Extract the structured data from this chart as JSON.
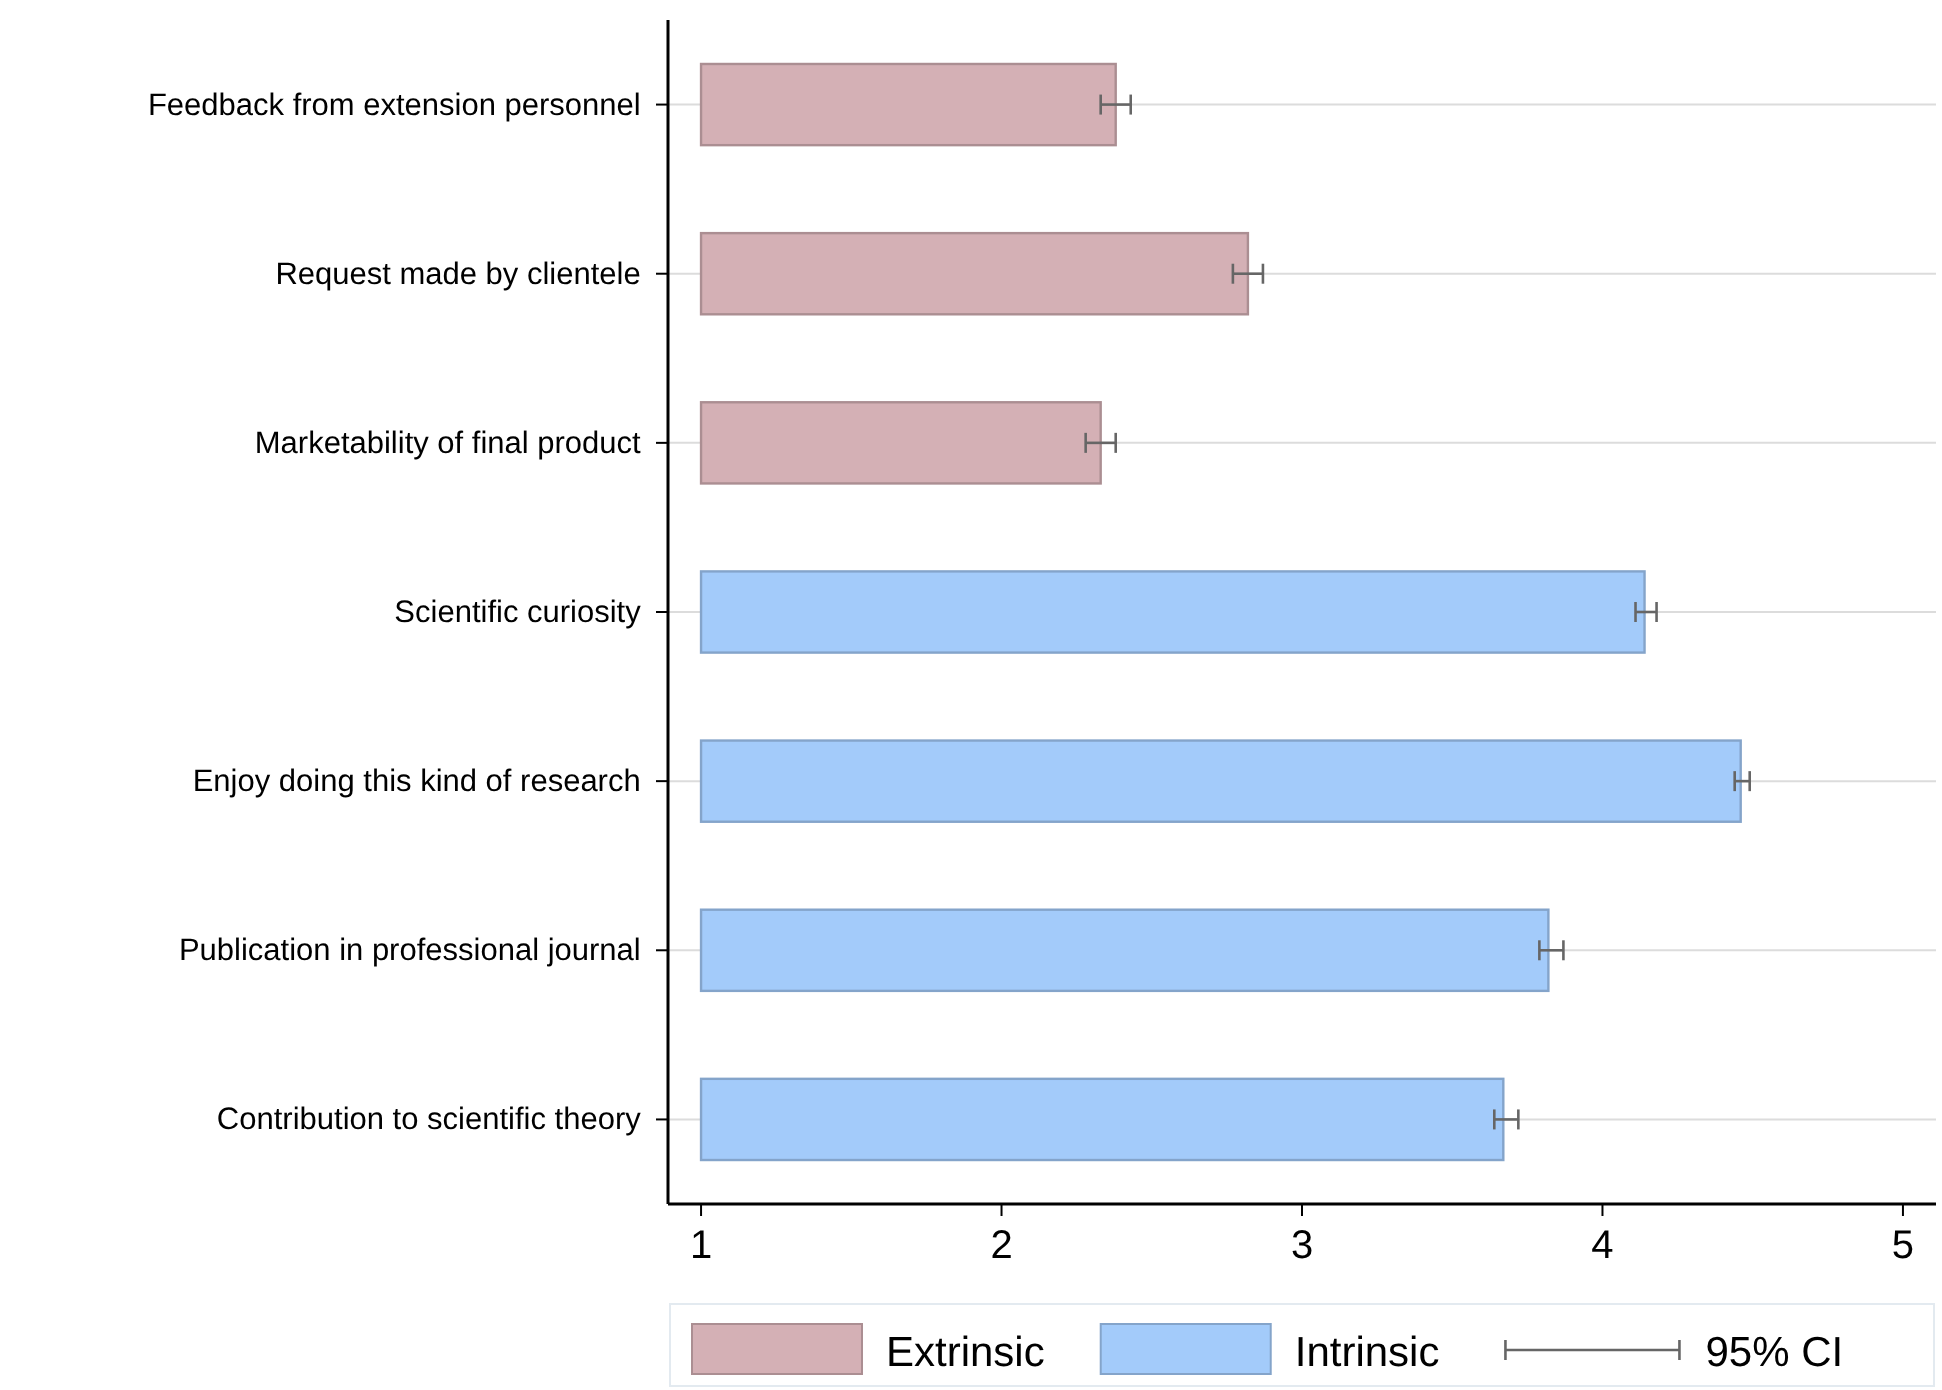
{
  "chart_data": {
    "type": "bar",
    "orientation": "horizontal",
    "categories": [
      "Feedback from extension personnel",
      "Request made by clientele",
      "Marketability of final product",
      "Scientific curiosity",
      "Enjoy doing this kind of research",
      "Publication in professional journal",
      "Contribution to scientific theory"
    ],
    "series": [
      {
        "name": "Extrinsic",
        "color": "#d4b0b5",
        "values": [
          1.38,
          1.82,
          1.33,
          null,
          null,
          null,
          null
        ],
        "base": [
          1,
          1,
          1,
          null,
          null,
          null,
          null
        ],
        "errors": [
          [
            2.33,
            2.43
          ],
          [
            2.77,
            2.87
          ],
          [
            2.28,
            2.38
          ],
          null,
          null,
          null,
          null
        ]
      },
      {
        "name": "Intrinsic",
        "color": "#a3cbfa",
        "values": [
          null,
          null,
          null,
          3.14,
          3.46,
          2.82,
          2.67
        ],
        "base": [
          null,
          null,
          null,
          1,
          1,
          1,
          1
        ],
        "errors": [
          null,
          null,
          null,
          [
            4.11,
            4.18
          ],
          [
            4.44,
            4.49
          ],
          [
            3.79,
            3.87
          ],
          [
            3.64,
            3.72
          ]
        ]
      }
    ],
    "xlim": [
      0.89,
      5.11
    ],
    "xticks": [
      1,
      2,
      3,
      4,
      5
    ],
    "grid": "y",
    "legend": "bottom",
    "annotations": [
      "95% CI"
    ]
  }
}
